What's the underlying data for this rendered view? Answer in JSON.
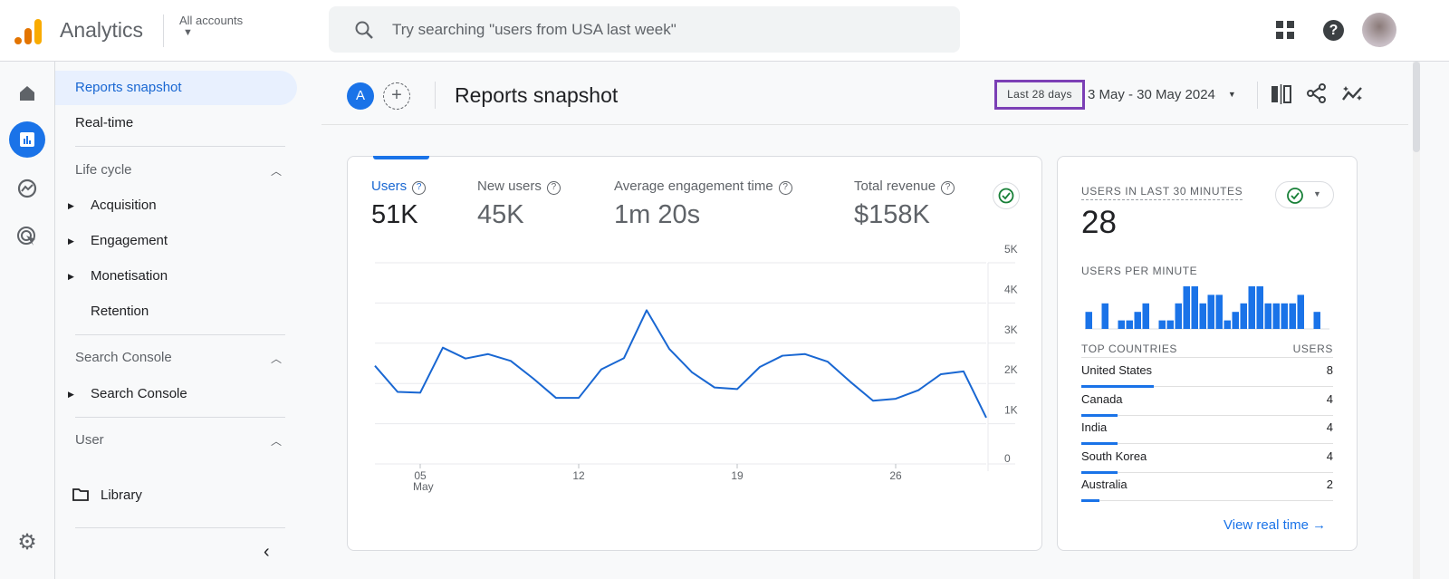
{
  "header": {
    "app_name": "Analytics",
    "account_label": "All accounts",
    "search_placeholder": "Try searching \"users from USA last week\""
  },
  "nav": {
    "reports_snapshot": "Reports snapshot",
    "realtime": "Real-time",
    "lifecycle": "Life cycle",
    "acquisition": "Acquisition",
    "engagement": "Engagement",
    "monetisation": "Monetisation",
    "retention": "Retention",
    "search_console_section": "Search Console",
    "search_console_item": "Search Console",
    "user": "User",
    "library": "Library"
  },
  "main": {
    "avatar_letter": "A",
    "title": "Reports snapshot",
    "date_preset": "Last 28 days",
    "date_range": "3 May - 30 May 2024"
  },
  "metrics": [
    {
      "label": "Users",
      "value": "51K"
    },
    {
      "label": "New users",
      "value": "45K"
    },
    {
      "label": "Average engagement time",
      "value": "1m 20s"
    },
    {
      "label": "Total revenue",
      "value": "$158K"
    }
  ],
  "chart_data": {
    "type": "line",
    "x": [
      "3 May",
      "4 May",
      "5 May",
      "6 May",
      "7 May",
      "8 May",
      "9 May",
      "10 May",
      "11 May",
      "12 May",
      "13 May",
      "14 May",
      "15 May",
      "16 May",
      "17 May",
      "18 May",
      "19 May",
      "20 May",
      "21 May",
      "22 May",
      "23 May",
      "24 May",
      "25 May",
      "26 May",
      "27 May",
      "28 May",
      "29 May",
      "30 May"
    ],
    "values": [
      2440,
      1790,
      1770,
      2890,
      2620,
      2730,
      2560,
      2120,
      1640,
      1640,
      2350,
      2630,
      3820,
      2860,
      2280,
      1900,
      1860,
      2410,
      2690,
      2730,
      2540,
      2040,
      1570,
      1620,
      1830,
      2230,
      2300,
      1150
    ],
    "xtick_labels": [
      {
        "day": 5,
        "label": "05",
        "sub": "May"
      },
      {
        "day": 12,
        "label": "12"
      },
      {
        "day": 19,
        "label": "19"
      },
      {
        "day": 26,
        "label": "26"
      }
    ],
    "ytick_labels": [
      "0",
      "1K",
      "2K",
      "3K",
      "4K",
      "5K"
    ],
    "ylim": [
      0,
      5000
    ],
    "grid": true,
    "color": "#1967d2"
  },
  "realtime": {
    "title": "USERS IN LAST 30 MINUTES",
    "value": "28",
    "per_minute_label": "USERS PER MINUTE",
    "per_minute": [
      2,
      0,
      3,
      0,
      1,
      1,
      2,
      3,
      0,
      1,
      1,
      3,
      5,
      5,
      3,
      4,
      4,
      1,
      2,
      3,
      5,
      5,
      3,
      3,
      3,
      3,
      4,
      0,
      2
    ],
    "countries_header": "TOP COUNTRIES",
    "users_header": "USERS",
    "countries": [
      {
        "name": "United States",
        "value": "8"
      },
      {
        "name": "Canada",
        "value": "4"
      },
      {
        "name": "India",
        "value": "4"
      },
      {
        "name": "South Korea",
        "value": "4"
      },
      {
        "name": "Australia",
        "value": "2"
      }
    ],
    "view_link": "View real time"
  },
  "colors": {
    "accent": "#1a73e8",
    "highlight_box": "#7b3fb5",
    "success": "#188038"
  }
}
